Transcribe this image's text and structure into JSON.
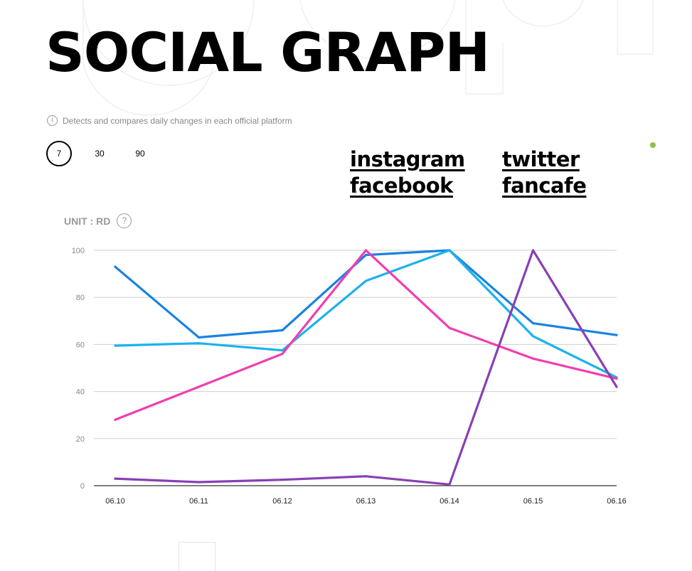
{
  "header": {
    "title": "SOCIAL GRAPH",
    "info_text": "Detects and compares daily changes in each official platform",
    "info_icon": "info-icon"
  },
  "periods": [
    {
      "label": "7",
      "active": true
    },
    {
      "label": "30",
      "active": false
    },
    {
      "label": "90",
      "active": false
    }
  ],
  "legend": {
    "instagram": "instagram",
    "twitter": "twitter",
    "facebook": "facebook",
    "fancafe": "fancafe"
  },
  "unit": {
    "label": "UNIT : RD",
    "help": "?"
  },
  "chart_data": {
    "type": "line",
    "title": "",
    "xlabel": "",
    "ylabel": "UNIT : RD",
    "categories": [
      "06.10",
      "06.11",
      "06.12",
      "06.13",
      "06.14",
      "06.15",
      "06.16"
    ],
    "yticks": [
      0,
      20,
      40,
      60,
      80,
      100
    ],
    "ylim": [
      0,
      100
    ],
    "grid": true,
    "series": [
      {
        "name": "blue",
        "color": "#1a82e2",
        "values": [
          93,
          63,
          66,
          98,
          100,
          69,
          64
        ]
      },
      {
        "name": "light-blue",
        "color": "#1ab2ee",
        "values": [
          59.5,
          60.5,
          57.5,
          87,
          100,
          63.5,
          46
        ]
      },
      {
        "name": "pink",
        "color": "#ef3fae",
        "values": [
          28,
          42,
          56,
          100,
          67,
          54,
          45.5
        ]
      },
      {
        "name": "purple",
        "color": "#8a3fb4",
        "values": [
          3,
          1.5,
          2.5,
          4,
          0.5,
          100,
          42
        ]
      }
    ]
  }
}
